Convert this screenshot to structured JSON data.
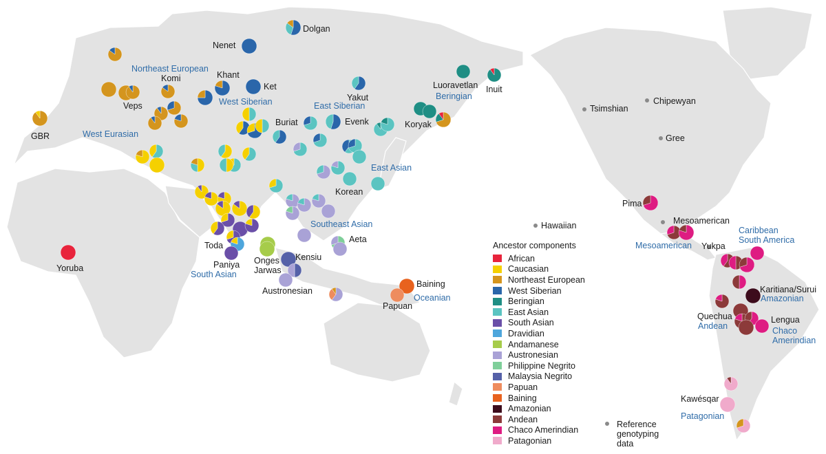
{
  "legend": {
    "title": "Ancestor components",
    "items": [
      {
        "label": "African",
        "color": "#e8243c"
      },
      {
        "label": "Caucasian",
        "color": "#f5d000"
      },
      {
        "label": "Northeast European",
        "color": "#d4951e"
      },
      {
        "label": "West Siberian",
        "color": "#2a66aa"
      },
      {
        "label": "Beringian",
        "color": "#1f8e84"
      },
      {
        "label": "East Asian",
        "color": "#5bc4c1"
      },
      {
        "label": "South Asian",
        "color": "#6a4fa8"
      },
      {
        "label": "Dravidian",
        "color": "#4ea6dc"
      },
      {
        "label": "Andamanese",
        "color": "#a6cc4a"
      },
      {
        "label": "Austronesian",
        "color": "#a9a2d6"
      },
      {
        "label": "Philippine Negrito",
        "color": "#7fcf9a"
      },
      {
        "label": "Malaysia Negrito",
        "color": "#5561a8"
      },
      {
        "label": "Papuan",
        "color": "#ee8c5e"
      },
      {
        "label": "Baining",
        "color": "#e8621e"
      },
      {
        "label": "Amazonian",
        "color": "#3d0c1c"
      },
      {
        "label": "Andean",
        "color": "#8c3a3a"
      },
      {
        "label": "Chaco Amerindian",
        "color": "#de1c82"
      },
      {
        "label": "Patagonian",
        "color": "#f0aacb"
      }
    ]
  },
  "reference_note": "Reference genotyping data",
  "population_labels": [
    "Dolgan",
    "Nenet",
    "Khant",
    "Komi",
    "Ket",
    "Veps",
    "GBR",
    "Yakut",
    "Luoravetlan",
    "Inuit",
    "Buriat",
    "Evenk",
    "Koryak",
    "Korean",
    "Toda",
    "Paniya",
    "Onges",
    "Jarwas",
    "Kensiu",
    "Aeta",
    "Austronesian",
    "Yoruba",
    "Baining",
    "Papuan",
    "Pima",
    "Mesoamerican",
    "Yukpa",
    "Karitiana/Surui",
    "Quechua",
    "Lengua",
    "Kawésqar"
  ],
  "region_labels": [
    "Northeast  European",
    "West Siberian",
    "East Siberian",
    "Beringian",
    "West Eurasian",
    "East Asian",
    "Southeast Asian",
    "South Asian",
    "Oceanian",
    "Mesoamerican",
    "Caribbean\nSouth America",
    "Amazonian",
    "Andean",
    "Chaco\nAmerindian",
    "Patagonian"
  ],
  "reference_sites": [
    "Tsimshian",
    "Chipewyan",
    "Gree",
    "Hawaiian"
  ]
}
